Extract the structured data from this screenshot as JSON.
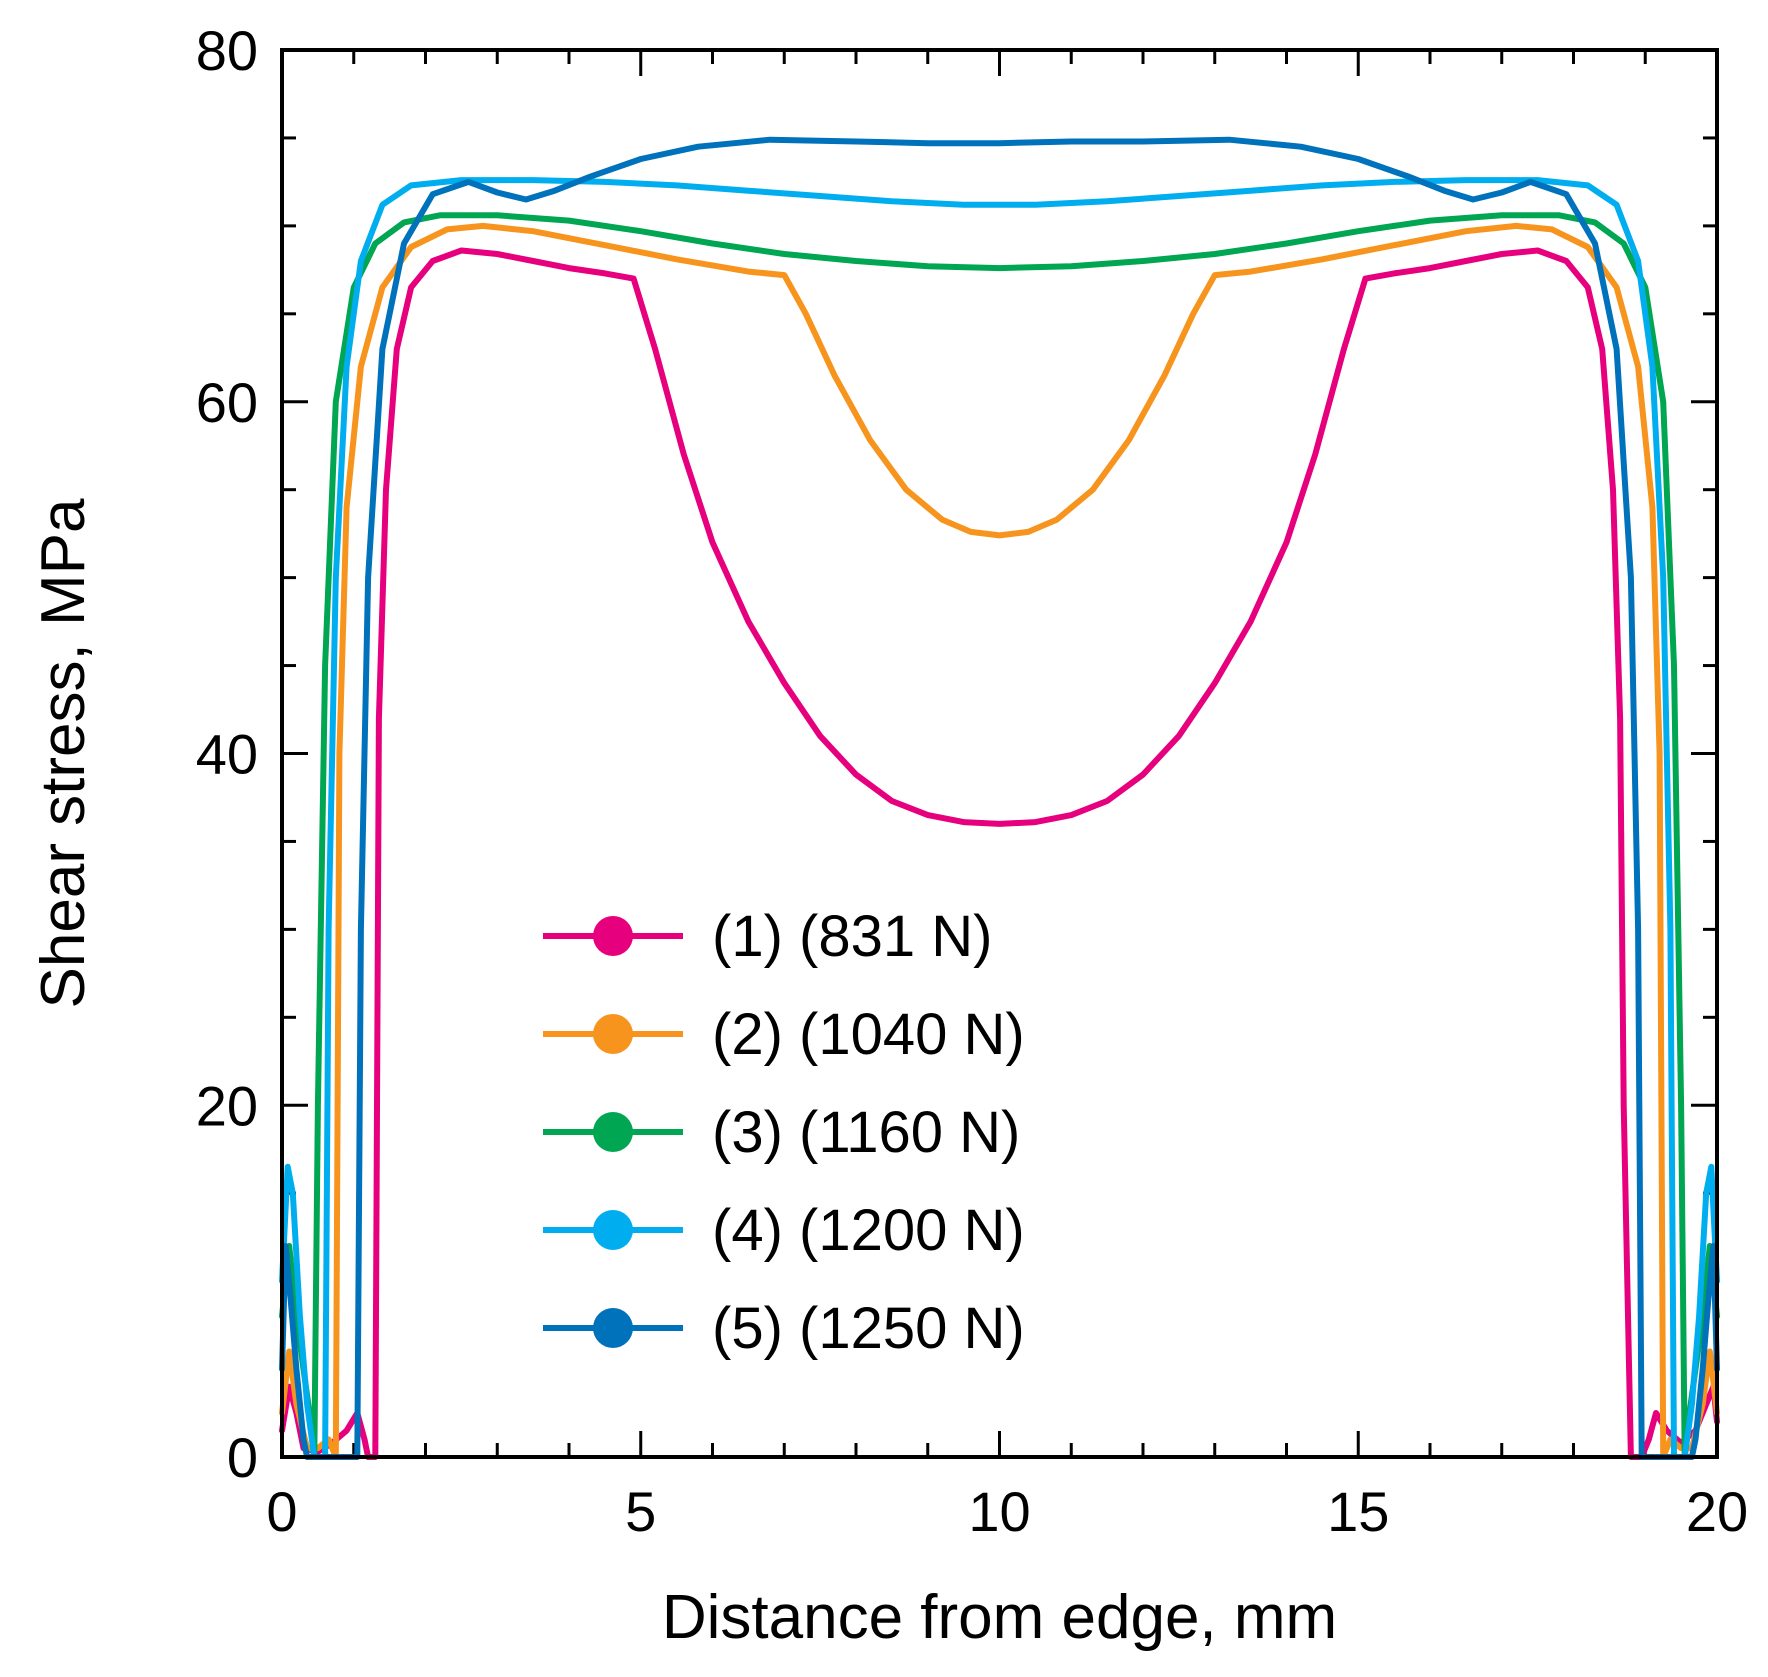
{
  "chart_data": {
    "type": "line",
    "title": "",
    "xlabel": "Distance from edge, mm",
    "ylabel": "Shear stress, MPa",
    "xlim": [
      0,
      20
    ],
    "ylim": [
      0,
      80
    ],
    "x_ticks": [
      0,
      5,
      10,
      15,
      20
    ],
    "y_ticks": [
      0,
      20,
      40,
      60,
      80
    ],
    "x_minor_step": 1,
    "y_minor_step": 5,
    "grid": false,
    "legend_position": "center-bottom",
    "series": [
      {
        "name": "(1) (831 N)",
        "color": "#E6007E",
        "points": [
          [
            0,
            1.5
          ],
          [
            0.1,
            4
          ],
          [
            0.2,
            2.5
          ],
          [
            0.3,
            0.5
          ],
          [
            0.5,
            0.3
          ],
          [
            0.7,
            0.8
          ],
          [
            0.9,
            1.5
          ],
          [
            1.05,
            2.5
          ],
          [
            1.15,
            1
          ],
          [
            1.2,
            0
          ],
          [
            1.3,
            0
          ],
          [
            1.35,
            42
          ],
          [
            1.45,
            55
          ],
          [
            1.6,
            63
          ],
          [
            1.8,
            66.5
          ],
          [
            2.1,
            68
          ],
          [
            2.5,
            68.6
          ],
          [
            3,
            68.4
          ],
          [
            3.5,
            68
          ],
          [
            4,
            67.6
          ],
          [
            4.5,
            67.3
          ],
          [
            4.9,
            67
          ],
          [
            5.2,
            63
          ],
          [
            5.6,
            57
          ],
          [
            6,
            52
          ],
          [
            6.5,
            47.5
          ],
          [
            7,
            44
          ],
          [
            7.5,
            41
          ],
          [
            8,
            38.8
          ],
          [
            8.5,
            37.3
          ],
          [
            9,
            36.5
          ],
          [
            9.5,
            36.1
          ],
          [
            10,
            36
          ],
          [
            10.5,
            36.1
          ],
          [
            11,
            36.5
          ],
          [
            11.5,
            37.3
          ],
          [
            12,
            38.8
          ],
          [
            12.5,
            41
          ],
          [
            13,
            44
          ],
          [
            13.5,
            47.5
          ],
          [
            14,
            52
          ],
          [
            14.4,
            57
          ],
          [
            14.8,
            63
          ],
          [
            15.1,
            67
          ],
          [
            15.5,
            67.3
          ],
          [
            16,
            67.6
          ],
          [
            16.5,
            68
          ],
          [
            17,
            68.4
          ],
          [
            17.5,
            68.6
          ],
          [
            17.9,
            68
          ],
          [
            18.2,
            66.5
          ],
          [
            18.4,
            63
          ],
          [
            18.55,
            55
          ],
          [
            18.65,
            42
          ],
          [
            18.7,
            20
          ],
          [
            18.8,
            0
          ],
          [
            18.95,
            0
          ],
          [
            19.05,
            1
          ],
          [
            19.15,
            2.5
          ],
          [
            19.3,
            1.5
          ],
          [
            19.5,
            0.8
          ],
          [
            19.7,
            1.5
          ],
          [
            19.85,
            3
          ],
          [
            19.95,
            4
          ],
          [
            20,
            2
          ]
        ]
      },
      {
        "name": "(2) (1040 N)",
        "color": "#F7941D",
        "points": [
          [
            0,
            2.5
          ],
          [
            0.1,
            6
          ],
          [
            0.2,
            3
          ],
          [
            0.35,
            0.5
          ],
          [
            0.5,
            0.5
          ],
          [
            0.65,
            1
          ],
          [
            0.75,
            0
          ],
          [
            0.8,
            40
          ],
          [
            0.9,
            54
          ],
          [
            1.1,
            62
          ],
          [
            1.4,
            66.5
          ],
          [
            1.8,
            68.8
          ],
          [
            2.3,
            69.8
          ],
          [
            2.8,
            70
          ],
          [
            3.5,
            69.7
          ],
          [
            4.5,
            68.9
          ],
          [
            5.5,
            68.1
          ],
          [
            6.5,
            67.4
          ],
          [
            7,
            67.2
          ],
          [
            7.3,
            65
          ],
          [
            7.7,
            61.5
          ],
          [
            8.2,
            57.8
          ],
          [
            8.7,
            55
          ],
          [
            9.2,
            53.3
          ],
          [
            9.6,
            52.6
          ],
          [
            10,
            52.4
          ],
          [
            10.4,
            52.6
          ],
          [
            10.8,
            53.3
          ],
          [
            11.3,
            55
          ],
          [
            11.8,
            57.8
          ],
          [
            12.3,
            61.5
          ],
          [
            12.7,
            65
          ],
          [
            13,
            67.2
          ],
          [
            13.5,
            67.4
          ],
          [
            14.5,
            68.1
          ],
          [
            15.5,
            68.9
          ],
          [
            16.5,
            69.7
          ],
          [
            17.2,
            70
          ],
          [
            17.7,
            69.8
          ],
          [
            18.2,
            68.8
          ],
          [
            18.6,
            66.5
          ],
          [
            18.9,
            62
          ],
          [
            19.1,
            54
          ],
          [
            19.2,
            40
          ],
          [
            19.25,
            0
          ],
          [
            19.35,
            1
          ],
          [
            19.5,
            0.5
          ],
          [
            19.65,
            0.5
          ],
          [
            19.8,
            3
          ],
          [
            19.9,
            6
          ],
          [
            20,
            2.5
          ]
        ]
      },
      {
        "name": "(3) (1160 N)",
        "color": "#00A651",
        "points": [
          [
            0,
            8
          ],
          [
            0.1,
            12
          ],
          [
            0.2,
            8
          ],
          [
            0.3,
            5
          ],
          [
            0.4,
            2
          ],
          [
            0.45,
            0
          ],
          [
            0.5,
            20
          ],
          [
            0.6,
            45
          ],
          [
            0.75,
            60
          ],
          [
            1,
            66.5
          ],
          [
            1.3,
            69
          ],
          [
            1.7,
            70.2
          ],
          [
            2.2,
            70.6
          ],
          [
            3,
            70.6
          ],
          [
            4,
            70.3
          ],
          [
            5,
            69.7
          ],
          [
            6,
            69
          ],
          [
            7,
            68.4
          ],
          [
            8,
            68
          ],
          [
            9,
            67.7
          ],
          [
            10,
            67.6
          ],
          [
            11,
            67.7
          ],
          [
            12,
            68
          ],
          [
            13,
            68.4
          ],
          [
            14,
            69
          ],
          [
            15,
            69.7
          ],
          [
            16,
            70.3
          ],
          [
            17,
            70.6
          ],
          [
            17.8,
            70.6
          ],
          [
            18.3,
            70.2
          ],
          [
            18.7,
            69
          ],
          [
            19,
            66.5
          ],
          [
            19.25,
            60
          ],
          [
            19.4,
            45
          ],
          [
            19.5,
            20
          ],
          [
            19.55,
            0
          ],
          [
            19.6,
            2
          ],
          [
            19.7,
            5
          ],
          [
            19.8,
            8
          ],
          [
            19.9,
            12
          ],
          [
            20,
            8
          ]
        ]
      },
      {
        "name": "(4) (1200 N)",
        "color": "#00AEEF",
        "points": [
          [
            0,
            10
          ],
          [
            0.08,
            16.5
          ],
          [
            0.15,
            15
          ],
          [
            0.25,
            8
          ],
          [
            0.35,
            3
          ],
          [
            0.45,
            0
          ],
          [
            0.6,
            0
          ],
          [
            0.65,
            30
          ],
          [
            0.75,
            50
          ],
          [
            0.9,
            62
          ],
          [
            1.1,
            68
          ],
          [
            1.4,
            71.2
          ],
          [
            1.8,
            72.3
          ],
          [
            2.5,
            72.6
          ],
          [
            3.5,
            72.6
          ],
          [
            4.5,
            72.5
          ],
          [
            5.5,
            72.3
          ],
          [
            6.5,
            72
          ],
          [
            7.5,
            71.7
          ],
          [
            8.5,
            71.4
          ],
          [
            9.5,
            71.2
          ],
          [
            10,
            71.2
          ],
          [
            10.5,
            71.2
          ],
          [
            11.5,
            71.4
          ],
          [
            12.5,
            71.7
          ],
          [
            13.5,
            72
          ],
          [
            14.5,
            72.3
          ],
          [
            15.5,
            72.5
          ],
          [
            16.5,
            72.6
          ],
          [
            17.5,
            72.6
          ],
          [
            18.2,
            72.3
          ],
          [
            18.6,
            71.2
          ],
          [
            18.9,
            68
          ],
          [
            19.1,
            62
          ],
          [
            19.25,
            50
          ],
          [
            19.35,
            30
          ],
          [
            19.4,
            0
          ],
          [
            19.55,
            0
          ],
          [
            19.65,
            3
          ],
          [
            19.75,
            8
          ],
          [
            19.85,
            15
          ],
          [
            19.92,
            16.5
          ],
          [
            20,
            10
          ]
        ]
      },
      {
        "name": "(5) (1250 N)",
        "color": "#0072BC",
        "points": [
          [
            0,
            5
          ],
          [
            0.05,
            12
          ],
          [
            0.12,
            9
          ],
          [
            0.2,
            5
          ],
          [
            0.3,
            1
          ],
          [
            0.35,
            0
          ],
          [
            1.05,
            0
          ],
          [
            1.1,
            30
          ],
          [
            1.2,
            50
          ],
          [
            1.4,
            63
          ],
          [
            1.7,
            69
          ],
          [
            2.1,
            71.8
          ],
          [
            2.6,
            72.5
          ],
          [
            3,
            71.9
          ],
          [
            3.4,
            71.5
          ],
          [
            3.8,
            72
          ],
          [
            4.3,
            72.8
          ],
          [
            5,
            73.8
          ],
          [
            5.8,
            74.5
          ],
          [
            6.8,
            74.9
          ],
          [
            8,
            74.8
          ],
          [
            9,
            74.7
          ],
          [
            10,
            74.7
          ],
          [
            11,
            74.8
          ],
          [
            12,
            74.8
          ],
          [
            13.2,
            74.9
          ],
          [
            14.2,
            74.5
          ],
          [
            15,
            73.8
          ],
          [
            15.7,
            72.8
          ],
          [
            16.2,
            72
          ],
          [
            16.6,
            71.5
          ],
          [
            17,
            71.9
          ],
          [
            17.4,
            72.5
          ],
          [
            17.9,
            71.8
          ],
          [
            18.3,
            69
          ],
          [
            18.6,
            63
          ],
          [
            18.8,
            50
          ],
          [
            18.9,
            30
          ],
          [
            18.95,
            0
          ],
          [
            19.65,
            0
          ],
          [
            19.7,
            1
          ],
          [
            19.8,
            5
          ],
          [
            19.88,
            9
          ],
          [
            19.95,
            12
          ],
          [
            20,
            5
          ]
        ]
      }
    ]
  }
}
